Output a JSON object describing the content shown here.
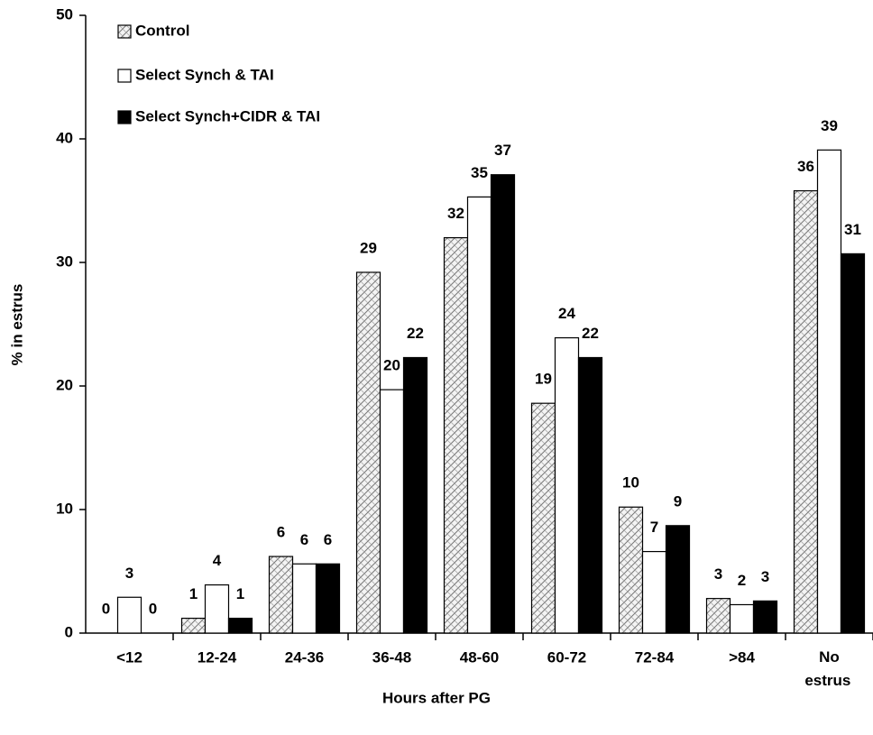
{
  "chart_data": {
    "type": "bar",
    "x_label": "Hours after PG",
    "y_label": "% in estrus",
    "categories": [
      "<12",
      "12-24",
      "24-36",
      "36-48",
      "48-60",
      "60-72",
      "72-84",
      ">84",
      "No estrus"
    ],
    "series": [
      {
        "name": "Control",
        "color": "#ffffff",
        "pattern": "crosshatch",
        "values": [
          0,
          1.2,
          6.2,
          29.2,
          32,
          18.6,
          10.2,
          2.8,
          35.8
        ],
        "value_labels": [
          "0",
          "1",
          "6",
          "29",
          "32",
          "19",
          "10",
          "3",
          "36"
        ]
      },
      {
        "name": "Select Synch & TAI",
        "color": "#ffffff",
        "values": [
          2.9,
          3.9,
          5.6,
          19.7,
          35.3,
          23.9,
          6.6,
          2.3,
          39.1
        ],
        "value_labels": [
          "3",
          "4",
          "6",
          "20",
          "35",
          "24",
          "7",
          "2",
          "39"
        ]
      },
      {
        "name": "Select Synch+CIDR & TAI",
        "color": "#000000",
        "values": [
          0,
          1.2,
          5.6,
          22.3,
          37.1,
          22.3,
          8.7,
          2.6,
          30.7
        ],
        "value_labels": [
          "0",
          "1",
          "6",
          "22",
          "37",
          "22",
          "9",
          "3",
          "31"
        ]
      }
    ],
    "ylim": [
      0,
      50
    ],
    "yticks": [
      0,
      10,
      20,
      30,
      40,
      50
    ],
    "legend": "top-left",
    "grid": false
  }
}
